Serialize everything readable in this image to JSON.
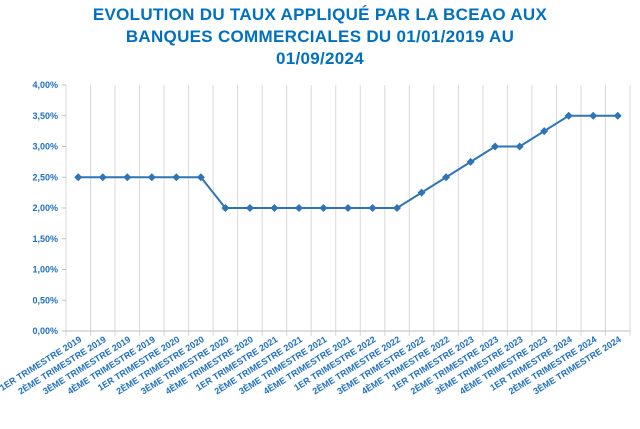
{
  "chart_data": {
    "type": "line",
    "title": "EVOLUTION DU TAUX APPLIQUÉ PAR LA BCEAO AUX BANQUES COMMERCIALES DU 01/01/2019 AU 01/09/2024",
    "categories": [
      "1ER TRIMESTRE 2019",
      "2ÈME TRIMESTRE 2019",
      "3ÈME TRIMESTRE 2019",
      "4ÈME TRIMESTRE 2019",
      "1ER TRIMESTRE 2020",
      "2ÈME TRIMESTRE 2020",
      "3ÈME TRIMESTRE 2020",
      "4ÈME TRIMESTRE 2020",
      "1ER TRIMESTRE 2021",
      "2ÈME TRIMESTRE 2021",
      "3ÈME TRIMESTRE 2021",
      "4ÈME TRIMESTRE 2021",
      "1ER TRIMESTRE 2022",
      "2ÈME TRIMESTRE 2022",
      "3ÈME TRIMESTRE 2022",
      "4ÈME TRIMESTRE 2022",
      "1ER TRIMESTRE 2023",
      "2ÈME TRIMESTRE 2023",
      "3ÈME TRIMESTRE 2023",
      "4ÈME TRIMESTRE 2023",
      "1ER TRIMESTRE 2024",
      "2ÈME TRIMESTRE 2024",
      "3ÈME TRIMESTRE 2024"
    ],
    "values": [
      2.5,
      2.5,
      2.5,
      2.5,
      2.5,
      2.5,
      2.0,
      2.0,
      2.0,
      2.0,
      2.0,
      2.0,
      2.0,
      2.0,
      2.25,
      2.5,
      2.75,
      3.0,
      3.0,
      3.25,
      3.5,
      3.5,
      3.5
    ],
    "color": "#2e75b6",
    "ylim": [
      0,
      4
    ],
    "yticks": [
      {
        "value": 0,
        "label": "0,00%"
      },
      {
        "value": 0.5,
        "label": "0,50%"
      },
      {
        "value": 1,
        "label": "1,00%"
      },
      {
        "value": 1.5,
        "label": "1,50%"
      },
      {
        "value": 2,
        "label": "2,00%"
      },
      {
        "value": 2.5,
        "label": "2,50%"
      },
      {
        "value": 3,
        "label": "3,00%"
      },
      {
        "value": 3.5,
        "label": "3,50%"
      },
      {
        "value": 4,
        "label": "4,00%"
      }
    ],
    "grid": true
  }
}
